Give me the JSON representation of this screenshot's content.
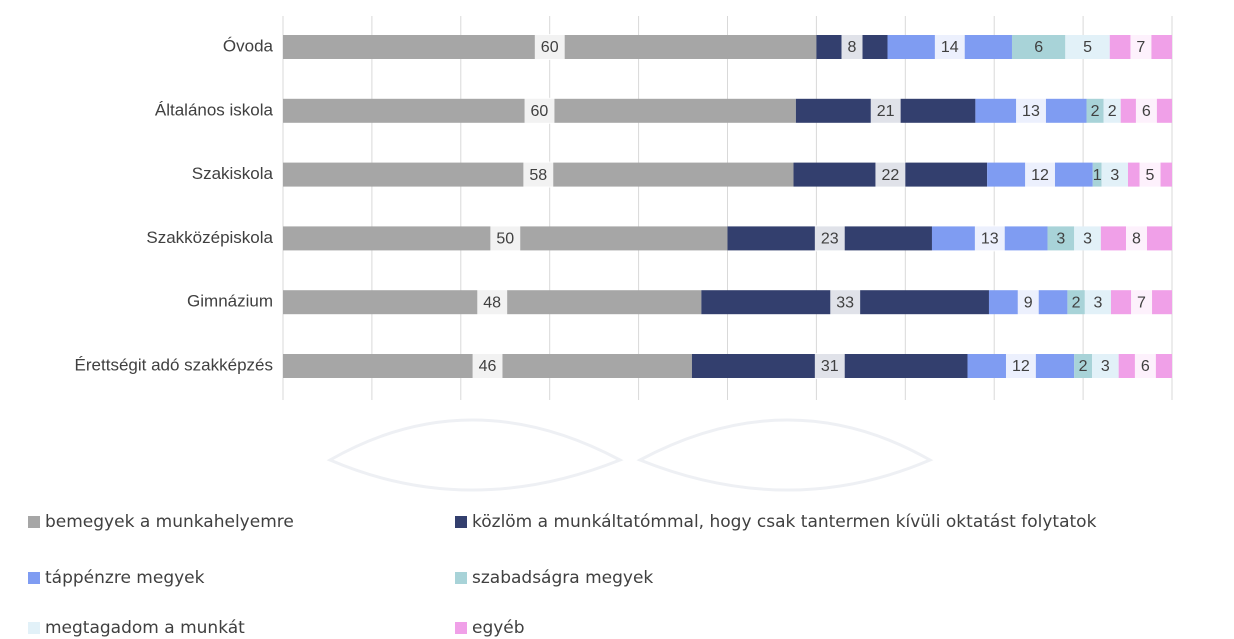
{
  "chart_data": {
    "type": "bar",
    "orientation": "horizontal",
    "stacking": "percent",
    "categories": [
      "Óvoda",
      "Általános iskola",
      "Szakiskola",
      "Szakközépiskola",
      "Gimnázium",
      "Érettségit adó szakképzés"
    ],
    "series": [
      {
        "name": "bemegyek a munkahelyemre",
        "color": "#a6a6a6",
        "values": [
          60,
          60,
          58,
          50,
          48,
          46
        ]
      },
      {
        "name": "közlöm a munkáltatómmal, hogy csak tantermen kívüli oktatást folytatok",
        "color": "#333f6e",
        "values": [
          8,
          21,
          22,
          23,
          33,
          31
        ]
      },
      {
        "name": "táppénzre megyek",
        "color": "#7f9cf2",
        "values": [
          14,
          13,
          12,
          13,
          9,
          12
        ]
      },
      {
        "name": "szabadságra megyek",
        "color": "#a8d3d8",
        "values": [
          6,
          2,
          1,
          3,
          2,
          2
        ]
      },
      {
        "name": "megtagadom a munkát",
        "color": "#e2f1f8",
        "values": [
          5,
          2,
          3,
          3,
          3,
          3
        ]
      },
      {
        "name": "egyéb",
        "color": "#f0a0e8",
        "values": [
          7,
          6,
          5,
          8,
          7,
          6
        ]
      }
    ]
  }
}
